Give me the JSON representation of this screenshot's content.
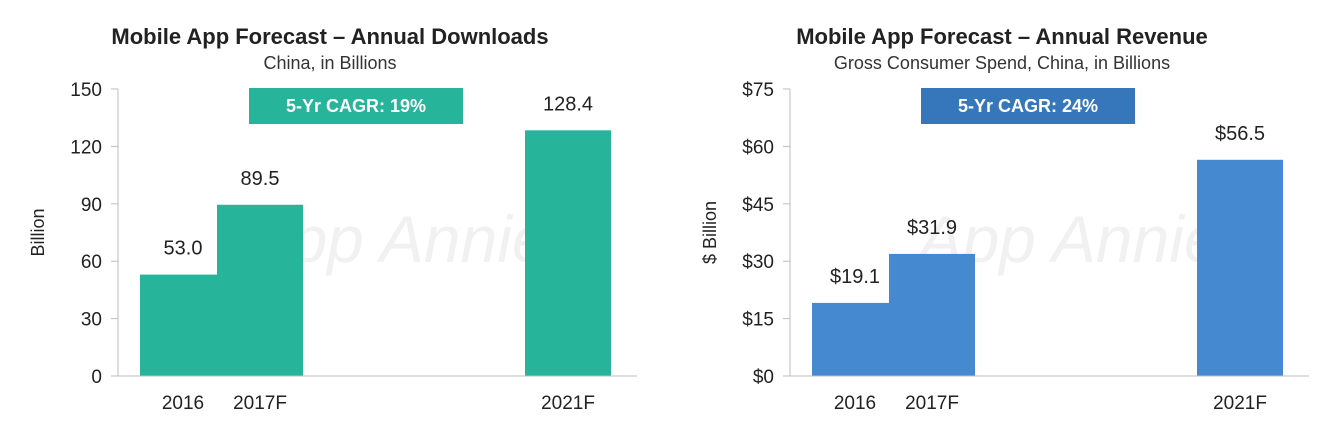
{
  "chart_data": [
    {
      "type": "bar",
      "title": "Mobile App Forecast – Annual Downloads",
      "subtitle": "China, in Billions",
      "ylabel": "Billion",
      "ylim": [
        0,
        150
      ],
      "yticks": [
        "0",
        "30",
        "60",
        "90",
        "120",
        "150"
      ],
      "yticks_values": [
        0,
        30,
        60,
        90,
        120,
        150
      ],
      "categories": [
        "2016",
        "2017F",
        "2021F"
      ],
      "category_years": [
        2016,
        2017,
        2021
      ],
      "values": [
        53.0,
        89.5,
        128.4
      ],
      "data_labels": [
        "53.0",
        "89.5",
        "128.4"
      ],
      "bar_color": "#26b59b",
      "annotation": "5-Yr CAGR: 19%",
      "annotation_color": "#26b59b",
      "watermark": "App Annie"
    },
    {
      "type": "bar",
      "title": "Mobile App Forecast – Annual Revenue",
      "subtitle": "Gross Consumer Spend, China, in Billions",
      "ylabel": "$ Billion",
      "ylim": [
        0,
        75
      ],
      "yticks": [
        "$0",
        "$15",
        "$30",
        "$45",
        "$60",
        "$75"
      ],
      "yticks_values": [
        0,
        15,
        30,
        45,
        60,
        75
      ],
      "categories": [
        "2016",
        "2017F",
        "2021F"
      ],
      "category_years": [
        2016,
        2017,
        2021
      ],
      "values": [
        19.1,
        31.9,
        56.5
      ],
      "data_labels": [
        "$19.1",
        "$31.9",
        "$56.5"
      ],
      "bar_color": "#4589d0",
      "annotation": "5-Yr CAGR: 24%",
      "annotation_color": "#3677bb",
      "watermark": "App Annie"
    }
  ]
}
